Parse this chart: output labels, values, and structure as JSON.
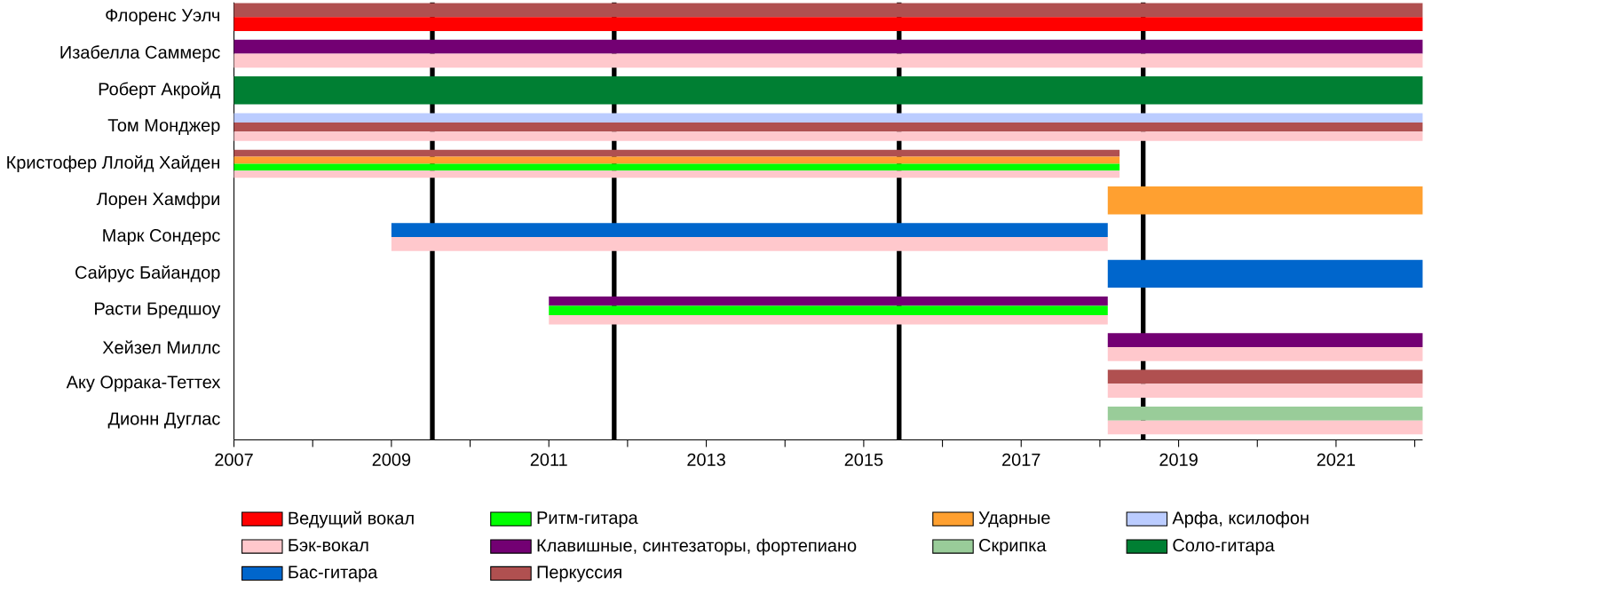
{
  "chart_data": {
    "type": "bar",
    "orientation": "horizontal",
    "categories": [
      "Флоренс Уэлч",
      "Изабелла Саммерс",
      "Роберт Акройд",
      "Том Монджер",
      "Кристофер Ллойд Хайден",
      "Лорен Хамфри",
      "Марк Сондерс",
      "Сайрус Байандор",
      "Расти Бредшоу",
      "Хейзел Миллс",
      "Аку Оррака-Теттех",
      "Дионн Дуглас"
    ],
    "xlim": [
      2007,
      2022.1
    ],
    "xticks": [
      2007,
      {
        "value": 2008,
        "label": null
      },
      2009,
      {
        "value": 2010,
        "label": null
      },
      2011,
      {
        "value": 2012,
        "label": null
      },
      2013,
      {
        "value": 2014,
        "label": null
      },
      2015,
      {
        "value": 2016,
        "label": null
      },
      2017,
      {
        "value": 2018,
        "label": null
      },
      2019,
      {
        "value": 2020,
        "label": null
      },
      2021,
      {
        "value": 2022,
        "label": null
      }
    ],
    "series": [
      {
        "name": "Ведущий вокал",
        "color": "#ff0000",
        "base": [
          2007,
          null,
          null,
          null,
          null,
          null,
          null,
          null,
          null,
          null,
          null,
          null
        ],
        "values": [
          15.1,
          null,
          null,
          null,
          null,
          null,
          null,
          null,
          null,
          null,
          null,
          null
        ]
      },
      {
        "name": "Бэк-вокал",
        "color": "#ffc8cc",
        "base": [
          null,
          2007,
          null,
          2007,
          2007,
          null,
          2009,
          null,
          2011,
          2018.1,
          2018.1,
          2018.1
        ],
        "values": [
          null,
          15.1,
          null,
          15.1,
          11.25,
          null,
          9.1,
          null,
          7.1,
          4.0,
          4.0,
          4.0
        ]
      },
      {
        "name": "Соло-гитара",
        "color": "#007f33",
        "base": [
          null,
          null,
          2007,
          null,
          null,
          null,
          null,
          null,
          null,
          null,
          null,
          null
        ],
        "values": [
          null,
          null,
          15.1,
          null,
          null,
          null,
          null,
          null,
          null,
          null,
          null,
          null
        ]
      },
      {
        "name": "Ритм-гитара",
        "color": "#00ff00",
        "base": [
          null,
          null,
          null,
          null,
          2007,
          null,
          null,
          null,
          2011,
          null,
          null,
          null
        ],
        "values": [
          null,
          null,
          null,
          null,
          11.25,
          null,
          null,
          null,
          7.1,
          null,
          null,
          null
        ]
      },
      {
        "name": "Клавишные, синтезаторы, фортепиано",
        "color": "#730073",
        "base": [
          null,
          2007,
          null,
          null,
          null,
          null,
          null,
          null,
          2011,
          2018.1,
          null,
          null
        ],
        "values": [
          null,
          15.1,
          null,
          null,
          null,
          null,
          null,
          null,
          7.1,
          4.0,
          null,
          null
        ]
      },
      {
        "name": "Бас-гитара",
        "color": "#0066cc",
        "base": [
          null,
          null,
          null,
          null,
          null,
          null,
          2009,
          2018.1,
          null,
          null,
          null,
          null
        ],
        "values": [
          null,
          null,
          null,
          null,
          null,
          null,
          9.1,
          4.0,
          null,
          null,
          null,
          null
        ]
      },
      {
        "name": "Ударные",
        "color": "#ffa030",
        "base": [
          null,
          null,
          null,
          null,
          2007,
          2018.1,
          null,
          null,
          null,
          null,
          null,
          null
        ],
        "values": [
          null,
          null,
          null,
          null,
          11.25,
          4.0,
          null,
          null,
          null,
          null,
          null,
          null
        ]
      },
      {
        "name": "Скрипка",
        "color": "#99cc99",
        "base": [
          null,
          null,
          null,
          null,
          null,
          null,
          null,
          null,
          null,
          null,
          null,
          2018.1
        ],
        "values": [
          null,
          null,
          null,
          null,
          null,
          null,
          null,
          null,
          null,
          null,
          null,
          4.0
        ]
      },
      {
        "name": "Перкуссия",
        "color": "#b05050",
        "base": [
          2007,
          null,
          null,
          2007,
          2007,
          null,
          null,
          null,
          null,
          null,
          2018.1,
          null
        ],
        "values": [
          15.1,
          null,
          null,
          15.1,
          11.25,
          null,
          null,
          null,
          null,
          null,
          4.0,
          null
        ]
      },
      {
        "name": "Арфа, ксилофон",
        "color": "#bbccff",
        "base": [
          null,
          null,
          null,
          2007,
          null,
          null,
          null,
          null,
          null,
          null,
          null,
          null
        ],
        "values": [
          null,
          null,
          null,
          15.1,
          null,
          null,
          null,
          null,
          null,
          null,
          null,
          null
        ]
      }
    ],
    "ref_lines": [
      {
        "axis": "x",
        "value": 2009.52,
        "color": "#000000"
      },
      {
        "axis": "x",
        "value": 2011.83,
        "color": "#000000"
      },
      {
        "axis": "x",
        "value": 2015.45,
        "color": "#000000"
      },
      {
        "axis": "x",
        "value": 2018.55,
        "color": "#000000"
      }
    ],
    "legend": "bottom"
  }
}
